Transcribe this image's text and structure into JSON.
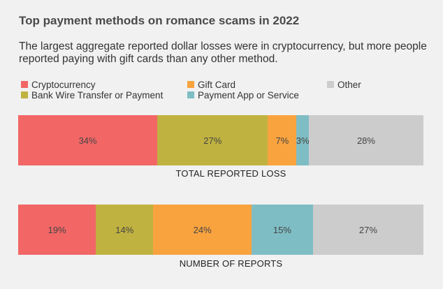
{
  "chart_data": {
    "type": "bar",
    "orientation": "horizontal-stacked-100",
    "title": "Top payment methods on romance scams in 2022",
    "subtitle": "The largest aggregate reported dollar losses were in cryptocurrency, but more people reported paying with gift cards than any other method.",
    "legend": [
      {
        "name": "Cryptocurrency",
        "color": "#f26666"
      },
      {
        "name": "Gift Card",
        "color": "#f9a33f"
      },
      {
        "name": "Other",
        "color": "#cccccc"
      },
      {
        "name": "Bank Wire Transfer or Payment",
        "color": "#c0b240"
      },
      {
        "name": "Payment App or Service",
        "color": "#7fbdc4"
      }
    ],
    "bars": [
      {
        "label": "TOTAL REPORTED LOSS",
        "segments": [
          {
            "name": "Cryptocurrency",
            "value": 34,
            "label": "34%",
            "color": "#f26666"
          },
          {
            "name": "Bank Wire Transfer or Payment",
            "value": 27,
            "label": "27%",
            "color": "#c0b240"
          },
          {
            "name": "Gift Card",
            "value": 7,
            "label": "7%",
            "color": "#f9a33f"
          },
          {
            "name": "Payment App or Service",
            "value": 3,
            "label": "3%",
            "color": "#7fbdc4"
          },
          {
            "name": "Other",
            "value": 28,
            "label": "28%",
            "color": "#cccccc"
          }
        ]
      },
      {
        "label": "NUMBER OF REPORTS",
        "segments": [
          {
            "name": "Cryptocurrency",
            "value": 19,
            "label": "19%",
            "color": "#f26666"
          },
          {
            "name": "Bank Wire Transfer or Payment",
            "value": 14,
            "label": "14%",
            "color": "#c0b240"
          },
          {
            "name": "Gift Card",
            "value": 24,
            "label": "24%",
            "color": "#f9a33f"
          },
          {
            "name": "Payment App or Service",
            "value": 15,
            "label": "15%",
            "color": "#7fbdc4"
          },
          {
            "name": "Other",
            "value": 27,
            "label": "27%",
            "color": "#cccccc"
          }
        ]
      }
    ],
    "legend_position": "top"
  }
}
